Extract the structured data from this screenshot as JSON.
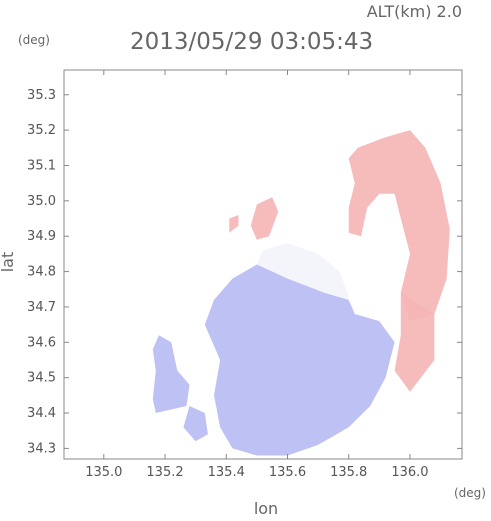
{
  "header": {
    "alt_label": "ALT(km)  2.0",
    "timestamp": "2013/05/29 03:05:43"
  },
  "chart_data": {
    "type": "heatmap",
    "title": "2013/05/29 03:05:43",
    "subtitle": "ALT(km)  2.0",
    "xlabel": "lon",
    "ylabel": "lat",
    "xunit": "(deg)",
    "yunit": "(deg)",
    "xlim": [
      134.87,
      136.17
    ],
    "ylim": [
      34.27,
      35.37
    ],
    "x_ticks": [
      "135.0",
      "135.2",
      "135.4",
      "135.6",
      "135.8",
      "136.0"
    ],
    "y_ticks": [
      "34.3",
      "34.4",
      "34.5",
      "34.6",
      "34.7",
      "34.8",
      "34.9",
      "35.0",
      "35.1",
      "35.2",
      "35.3"
    ],
    "grid": false,
    "colors": {
      "positive": "#f5b5b5",
      "negative": "#b8bcf2",
      "neutral": "#f3f3fb"
    },
    "regions": [
      {
        "name": "north-east-positive",
        "sign": "positive",
        "points": [
          [
            135.83,
            35.15
          ],
          [
            135.92,
            35.18
          ],
          [
            136.0,
            35.2
          ],
          [
            136.05,
            35.15
          ],
          [
            136.1,
            35.05
          ],
          [
            136.13,
            34.92
          ],
          [
            136.12,
            34.78
          ],
          [
            136.08,
            34.68
          ],
          [
            136.0,
            34.66
          ],
          [
            135.97,
            34.74
          ],
          [
            136.0,
            34.85
          ],
          [
            135.97,
            34.95
          ],
          [
            135.95,
            35.02
          ],
          [
            135.9,
            35.02
          ],
          [
            135.86,
            34.98
          ],
          [
            135.84,
            34.9
          ],
          [
            135.8,
            34.91
          ],
          [
            135.8,
            34.98
          ],
          [
            135.82,
            35.05
          ],
          [
            135.8,
            35.12
          ]
        ]
      },
      {
        "name": "east-band-positive",
        "sign": "positive",
        "points": [
          [
            135.97,
            34.74
          ],
          [
            136.08,
            34.68
          ],
          [
            136.08,
            34.55
          ],
          [
            136.0,
            34.46
          ],
          [
            135.95,
            34.52
          ],
          [
            135.97,
            34.62
          ]
        ]
      },
      {
        "name": "north-island-positive",
        "sign": "positive",
        "points": [
          [
            135.5,
            34.99
          ],
          [
            135.55,
            35.01
          ],
          [
            135.57,
            34.97
          ],
          [
            135.54,
            34.9
          ],
          [
            135.5,
            34.89
          ],
          [
            135.48,
            34.93
          ]
        ]
      },
      {
        "name": "north-small-positive",
        "sign": "positive",
        "points": [
          [
            135.41,
            34.95
          ],
          [
            135.44,
            34.96
          ],
          [
            135.44,
            34.93
          ],
          [
            135.41,
            34.91
          ]
        ]
      },
      {
        "name": "central-neutral",
        "sign": "neutral",
        "points": [
          [
            135.52,
            34.86
          ],
          [
            135.6,
            34.88
          ],
          [
            135.7,
            34.85
          ],
          [
            135.77,
            34.8
          ],
          [
            135.8,
            34.73
          ],
          [
            135.78,
            34.7
          ],
          [
            135.65,
            34.74
          ],
          [
            135.55,
            34.78
          ],
          [
            135.5,
            34.82
          ]
        ]
      },
      {
        "name": "central-negative",
        "sign": "negative",
        "points": [
          [
            135.5,
            34.82
          ],
          [
            135.6,
            34.78
          ],
          [
            135.72,
            34.74
          ],
          [
            135.8,
            34.72
          ],
          [
            135.82,
            34.68
          ],
          [
            135.9,
            34.66
          ],
          [
            135.95,
            34.6
          ],
          [
            135.92,
            34.5
          ],
          [
            135.87,
            34.42
          ],
          [
            135.8,
            34.36
          ],
          [
            135.7,
            34.31
          ],
          [
            135.6,
            34.28
          ],
          [
            135.5,
            34.28
          ],
          [
            135.42,
            34.3
          ],
          [
            135.38,
            34.36
          ],
          [
            135.36,
            34.45
          ],
          [
            135.38,
            34.55
          ],
          [
            135.33,
            34.65
          ],
          [
            135.36,
            34.72
          ],
          [
            135.42,
            34.78
          ]
        ]
      },
      {
        "name": "west-negative",
        "sign": "negative",
        "points": [
          [
            135.18,
            34.62
          ],
          [
            135.22,
            34.6
          ],
          [
            135.24,
            34.52
          ],
          [
            135.28,
            34.48
          ],
          [
            135.27,
            34.42
          ],
          [
            135.22,
            34.41
          ],
          [
            135.17,
            34.4
          ],
          [
            135.16,
            34.44
          ],
          [
            135.17,
            34.52
          ],
          [
            135.16,
            34.58
          ]
        ]
      },
      {
        "name": "south-west-negative",
        "sign": "negative",
        "points": [
          [
            135.28,
            34.42
          ],
          [
            135.33,
            34.4
          ],
          [
            135.34,
            34.34
          ],
          [
            135.3,
            34.32
          ],
          [
            135.26,
            34.36
          ]
        ]
      }
    ]
  }
}
